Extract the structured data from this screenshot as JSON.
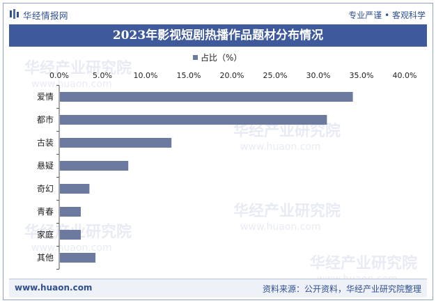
{
  "header": {
    "brand": "华经情报网",
    "slogan": "专业严谨 • 客观科学"
  },
  "footer": {
    "url": "www.huaon.com",
    "source": "资料来源：公开资料，华经产业研究院整理"
  },
  "watermark": {
    "text": "华经产业研究院",
    "url": "www.huaon.com"
  },
  "colors": {
    "bar": "#6b7a9e",
    "title_bg": "#3e5a9b",
    "brand": "#2f4f8f"
  },
  "chart_data": {
    "type": "bar",
    "orientation": "horizontal",
    "title": "2023年影视短剧热播作品题材分布情况",
    "legend": "top",
    "xlim": [
      0,
      40
    ],
    "x_ticks": [
      "0.0%",
      "5.0%",
      "10.0%",
      "15.0%",
      "20.0%",
      "25.0%",
      "30.0%",
      "35.0%",
      "40.0%"
    ],
    "categories": [
      "爱情",
      "都市",
      "古装",
      "悬疑",
      "奇幻",
      "青春",
      "家庭",
      "其他"
    ],
    "series": [
      {
        "name": "占比（%）",
        "values": [
          34.0,
          31.0,
          13.0,
          8.0,
          3.5,
          2.5,
          2.5,
          4.2
        ]
      }
    ]
  }
}
